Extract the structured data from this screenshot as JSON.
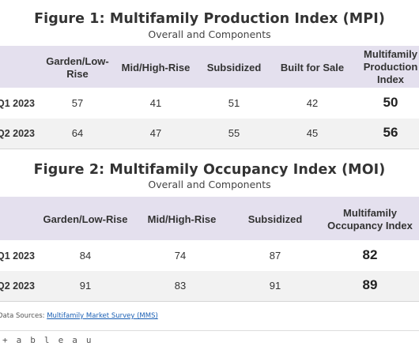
{
  "figure1": {
    "title": "Figure 1: Multifamily Production Index (MPI)",
    "subtitle": "Overall and Components",
    "headers": [
      "Garden/Low-Rise",
      "Mid/High-Rise",
      "Subsidized",
      "Built for Sale",
      "Multifamily Production Index"
    ],
    "rows": [
      {
        "label": "Q1 2023",
        "values": [
          "57",
          "41",
          "51",
          "42",
          "50"
        ]
      },
      {
        "label": "Q2 2023",
        "values": [
          "64",
          "47",
          "55",
          "45",
          "56"
        ]
      }
    ]
  },
  "figure2": {
    "title": "Figure 2: Multifamily Occupancy Index (MOI)",
    "subtitle": "Overall and Components",
    "headers": [
      "Garden/Low-Rise",
      "Mid/High-Rise",
      "Subsidized",
      "Multifamily Occupancy Index"
    ],
    "rows": [
      {
        "label": "Q1 2023",
        "values": [
          "84",
          "74",
          "87",
          "82"
        ]
      },
      {
        "label": "Q2 2023",
        "values": [
          "91",
          "83",
          "91",
          "89"
        ]
      }
    ]
  },
  "sources": {
    "prefix": "Data Sources: ",
    "link_text": "Multifamily Market Survey (MMS)"
  },
  "footer": {
    "logo_text": "+ a b l e a u"
  }
}
